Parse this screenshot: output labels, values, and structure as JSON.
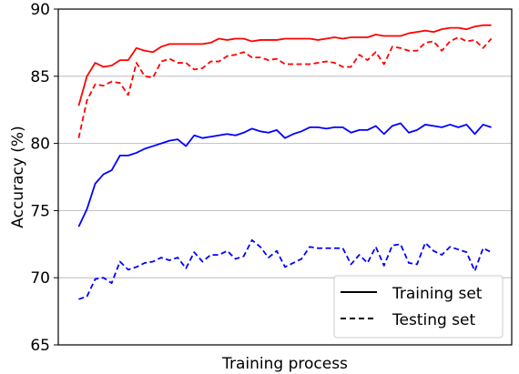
{
  "chart_data": {
    "type": "line",
    "xlabel": "Training process",
    "ylabel": "Accuracy (%)",
    "ylim": [
      65,
      90
    ],
    "yticks": [
      65,
      70,
      75,
      80,
      85,
      90
    ],
    "xticks": [],
    "grid": "horizontal",
    "legend_position": "bottom-right",
    "legend": [
      {
        "label": "Training set",
        "style": "solid"
      },
      {
        "label": "Testing set",
        "style": "dashed"
      }
    ],
    "x": [
      1,
      2,
      3,
      4,
      5,
      6,
      7,
      8,
      9,
      10,
      11,
      12,
      13,
      14,
      15,
      16,
      17,
      18,
      19,
      20,
      21,
      22,
      23,
      24,
      25,
      26,
      27,
      28,
      29,
      30,
      31,
      32,
      33,
      34,
      35,
      36,
      37,
      38,
      39,
      40,
      41,
      42,
      43,
      44,
      45,
      46,
      47,
      48,
      49,
      50,
      51
    ],
    "series": [
      {
        "color": "#ff0000",
        "style": "solid",
        "values": [
          82.8,
          85.0,
          86.0,
          85.7,
          85.8,
          86.2,
          86.2,
          87.1,
          86.9,
          86.8,
          87.2,
          87.4,
          87.4,
          87.4,
          87.4,
          87.4,
          87.5,
          87.8,
          87.7,
          87.8,
          87.8,
          87.6,
          87.7,
          87.7,
          87.7,
          87.8,
          87.8,
          87.8,
          87.8,
          87.7,
          87.8,
          87.9,
          87.8,
          87.9,
          87.9,
          87.9,
          88.1,
          88.0,
          88.0,
          88.0,
          88.2,
          88.3,
          88.4,
          88.3,
          88.5,
          88.6,
          88.6,
          88.5,
          88.7,
          88.8,
          88.8
        ]
      },
      {
        "color": "#ff0000",
        "style": "dashed",
        "values": [
          80.4,
          83.2,
          84.4,
          84.3,
          84.6,
          84.5,
          83.6,
          86.0,
          85.0,
          84.9,
          86.1,
          86.3,
          86.0,
          86.0,
          85.5,
          85.6,
          86.1,
          86.1,
          86.5,
          86.6,
          86.8,
          86.4,
          86.4,
          86.2,
          86.3,
          85.9,
          85.9,
          85.9,
          85.9,
          86.0,
          86.1,
          86.0,
          85.7,
          85.7,
          86.6,
          86.2,
          86.8,
          85.9,
          87.2,
          87.1,
          86.9,
          86.9,
          87.5,
          87.6,
          86.9,
          87.6,
          87.9,
          87.6,
          87.7,
          87.1,
          87.8
        ]
      },
      {
        "color": "#0000ff",
        "style": "solid",
        "values": [
          73.8,
          75.1,
          77.0,
          77.7,
          78.0,
          79.1,
          79.1,
          79.3,
          79.6,
          79.8,
          80.0,
          80.2,
          80.3,
          79.8,
          80.6,
          80.4,
          80.5,
          80.6,
          80.7,
          80.6,
          80.8,
          81.1,
          80.9,
          80.8,
          81.0,
          80.4,
          80.7,
          80.9,
          81.2,
          81.2,
          81.1,
          81.2,
          81.2,
          80.8,
          81.0,
          81.0,
          81.3,
          80.7,
          81.3,
          81.5,
          80.8,
          81.0,
          81.4,
          81.3,
          81.2,
          81.4,
          81.2,
          81.4,
          80.7,
          81.4,
          81.2
        ]
      },
      {
        "color": "#0000ff",
        "style": "dashed",
        "values": [
          68.4,
          68.6,
          69.9,
          70.0,
          69.6,
          71.2,
          70.6,
          70.8,
          71.1,
          71.2,
          71.5,
          71.3,
          71.5,
          70.7,
          71.9,
          71.2,
          71.7,
          71.7,
          72.0,
          71.4,
          71.6,
          72.8,
          72.3,
          71.5,
          72.0,
          70.8,
          71.1,
          71.4,
          72.3,
          72.2,
          72.2,
          72.2,
          72.2,
          71.0,
          71.7,
          71.1,
          72.3,
          70.9,
          72.4,
          72.5,
          71.1,
          71.0,
          72.6,
          72.0,
          71.7,
          72.3,
          72.1,
          71.9,
          70.5,
          72.2,
          71.9
        ]
      }
    ]
  }
}
